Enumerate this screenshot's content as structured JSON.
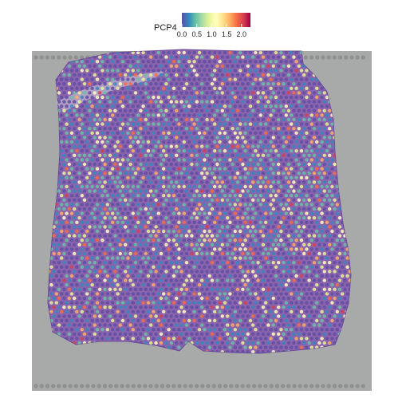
{
  "legend": {
    "title": "PCP4",
    "ticks": [
      "0.0",
      "0.5",
      "1.0",
      "1.5",
      "2.0"
    ],
    "tick_values": [
      0.0,
      0.5,
      1.0,
      1.5,
      2.0
    ],
    "range": [
      0.0,
      2.3
    ],
    "palette": [
      "#5e4fa2",
      "#3288bd",
      "#66c2a5",
      "#abdda4",
      "#e6f598",
      "#ffffbf",
      "#fee08b",
      "#fdae61",
      "#f46d43",
      "#d53e4f",
      "#9e0142"
    ]
  },
  "colors": {
    "slide_background": "#a7aaa8",
    "tissue": "#8c64ae",
    "tissue_dark": "#6c4a96",
    "fiducial": "#8e918f"
  }
}
